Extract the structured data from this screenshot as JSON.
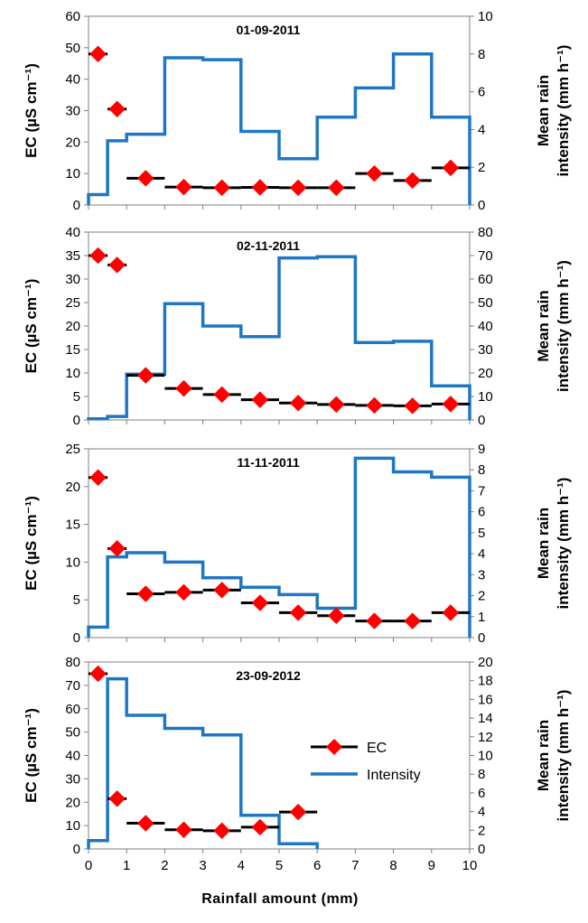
{
  "colors": {
    "intensity": "#1f77c4",
    "ec_marker": "#ff0000",
    "ec_line": "#000000",
    "axis": "#7f7f7f"
  },
  "x_axis": {
    "label": "Rainfall amount (mm)",
    "range": [
      0,
      10
    ],
    "ticks": [
      0,
      1,
      2,
      3,
      4,
      5,
      6,
      7,
      8,
      9,
      10
    ],
    "tick_labels": [
      "0",
      "1",
      "2",
      "3",
      "4",
      "5",
      "6",
      "7",
      "8",
      "9",
      "10"
    ]
  },
  "left_axis_label": "EC (µS cm⁻¹)",
  "right_axis_label_lines": [
    "Mean rain",
    "intensity (mm h⁻¹)"
  ],
  "legend": {
    "ec_label": "EC",
    "intensity_label": "Intensity",
    "panel": 3
  },
  "chart_data": [
    {
      "type": "bar",
      "title": "01-09-2011",
      "ylim_left": [
        0,
        60
      ],
      "left_ticks": [
        0,
        10,
        20,
        30,
        40,
        50,
        60
      ],
      "left_tick_labels": [
        "0",
        "10",
        "20",
        "30",
        "40",
        "50",
        "60"
      ],
      "ylim_right": [
        0,
        10
      ],
      "right_ticks": [
        0,
        2,
        4,
        6,
        8,
        10
      ],
      "right_tick_labels": [
        "0",
        "2",
        "4",
        "6",
        "8",
        "10"
      ],
      "intensity": {
        "edges": [
          0,
          0.5,
          1,
          2,
          3,
          4,
          5,
          6,
          7,
          8,
          9,
          10
        ],
        "values": [
          0.55,
          3.4,
          3.75,
          7.8,
          7.7,
          3.9,
          2.45,
          4.65,
          6.2,
          8.0,
          4.65
        ]
      },
      "ec": {
        "x0": [
          0,
          0.5,
          1,
          2,
          3,
          4,
          5,
          6,
          7,
          8,
          9
        ],
        "x1": [
          0.5,
          1,
          2,
          3,
          4,
          5,
          6,
          7,
          8,
          9,
          10
        ],
        "values": [
          48,
          30.5,
          8.5,
          5.7,
          5.5,
          5.6,
          5.5,
          5.5,
          10,
          7.8,
          11.8
        ]
      }
    },
    {
      "type": "bar",
      "title": "02-11-2011",
      "ylim_left": [
        0,
        40
      ],
      "left_ticks": [
        0,
        5,
        10,
        15,
        20,
        25,
        30,
        35,
        40
      ],
      "left_tick_labels": [
        "0",
        "5",
        "10",
        "15",
        "20",
        "25",
        "30",
        "35",
        "40"
      ],
      "ylim_right": [
        0,
        80
      ],
      "right_ticks": [
        0,
        10,
        20,
        30,
        40,
        50,
        60,
        70,
        80
      ],
      "right_tick_labels": [
        "0",
        "10",
        "20",
        "30",
        "40",
        "50",
        "60",
        "70",
        "80"
      ],
      "intensity": {
        "edges": [
          0,
          0.5,
          1,
          2,
          3,
          4,
          5,
          6,
          7,
          8,
          9,
          10
        ],
        "values": [
          0.5,
          1.5,
          19.5,
          49.5,
          40,
          35.5,
          69,
          69.5,
          33,
          33.5,
          14.5
        ]
      },
      "ec": {
        "x0": [
          0,
          0.5,
          1,
          2,
          3,
          4,
          5,
          6,
          7,
          8,
          9
        ],
        "x1": [
          0.5,
          1,
          2,
          3,
          4,
          5,
          6,
          7,
          8,
          9,
          10
        ],
        "values": [
          35,
          33,
          9.5,
          6.7,
          5.4,
          4.3,
          3.6,
          3.3,
          3.1,
          3.0,
          3.4
        ]
      }
    },
    {
      "type": "bar",
      "title": "11-11-2011",
      "ylim_left": [
        0,
        25
      ],
      "left_ticks": [
        0,
        5,
        10,
        15,
        20,
        25
      ],
      "left_tick_labels": [
        "0",
        "5",
        "10",
        "15",
        "20",
        "25"
      ],
      "ylim_right": [
        0,
        9
      ],
      "right_ticks": [
        0,
        1,
        2,
        3,
        4,
        5,
        6,
        7,
        8,
        9
      ],
      "right_tick_labels": [
        "0",
        "1",
        "2",
        "3",
        "4",
        "5",
        "6",
        "7",
        "8",
        "9"
      ],
      "intensity": {
        "edges": [
          0,
          0.5,
          1,
          2,
          3,
          4,
          5,
          6,
          7,
          8,
          9,
          10
        ],
        "values": [
          0.5,
          3.85,
          4.05,
          3.6,
          2.85,
          2.4,
          2.05,
          1.4,
          8.55,
          7.9,
          7.65
        ]
      },
      "ec": {
        "x0": [
          0,
          0.5,
          1,
          2,
          3,
          4,
          5,
          6,
          7,
          8,
          9
        ],
        "x1": [
          0.5,
          1,
          2,
          3,
          4,
          5,
          6,
          7,
          8,
          9,
          10
        ],
        "values": [
          21.2,
          11.8,
          5.8,
          6.0,
          6.3,
          4.6,
          3.3,
          2.9,
          2.2,
          2.2,
          3.3
        ]
      }
    },
    {
      "type": "bar",
      "title": "23-09-2012",
      "ylim_left": [
        0,
        80
      ],
      "left_ticks": [
        0,
        10,
        20,
        30,
        40,
        50,
        60,
        70,
        80
      ],
      "left_tick_labels": [
        "0",
        "10",
        "20",
        "30",
        "40",
        "50",
        "60",
        "70",
        "80"
      ],
      "ylim_right": [
        0,
        20
      ],
      "right_ticks": [
        0,
        2,
        4,
        6,
        8,
        10,
        12,
        14,
        16,
        18,
        20
      ],
      "right_tick_labels": [
        "0",
        "2",
        "4",
        "6",
        "8",
        "10",
        "12",
        "14",
        "16",
        "18",
        "20"
      ],
      "intensity": {
        "edges": [
          0,
          0.5,
          1,
          2,
          3,
          4,
          5,
          6
        ],
        "values": [
          0.9,
          18.2,
          14.3,
          12.9,
          12.2,
          3.6,
          0.55
        ]
      },
      "ec": {
        "x0": [
          0,
          0.5,
          1,
          2,
          3,
          4,
          5
        ],
        "x1": [
          0.5,
          1,
          2,
          3,
          4,
          5,
          6
        ],
        "values": [
          75,
          21.5,
          11,
          8.2,
          7.8,
          9.3,
          15.8
        ]
      }
    }
  ]
}
